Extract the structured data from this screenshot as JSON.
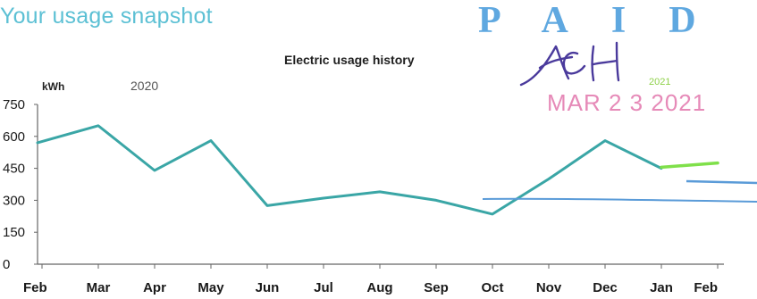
{
  "heading": "Your usage snapshot",
  "stamp": {
    "paid_text": "PAID",
    "date_text": "MAR 2 3 2021",
    "small_year": "2021",
    "signature": "ACH"
  },
  "chart_data": {
    "type": "line",
    "title": "Electric usage history",
    "ylabel": "kWh",
    "xlabel": "",
    "year_label": "2020",
    "categories": [
      "Feb",
      "Mar",
      "Apr",
      "May",
      "Jun",
      "Jul",
      "Aug",
      "Sep",
      "Oct",
      "Nov",
      "Dec",
      "Jan",
      "Feb"
    ],
    "yticks": [
      0,
      150,
      300,
      450,
      600,
      750
    ],
    "ylim": [
      0,
      750
    ],
    "grid": false,
    "series": [
      {
        "values": [
          570,
          650,
          440,
          580,
          275,
          310,
          340,
          300,
          235,
          400,
          580,
          450,
          null
        ],
        "color": "#3aa6a6"
      },
      {
        "values": [
          null,
          null,
          null,
          null,
          null,
          null,
          null,
          null,
          null,
          null,
          null,
          455,
          475
        ],
        "color": "#7fe04a"
      }
    ]
  }
}
